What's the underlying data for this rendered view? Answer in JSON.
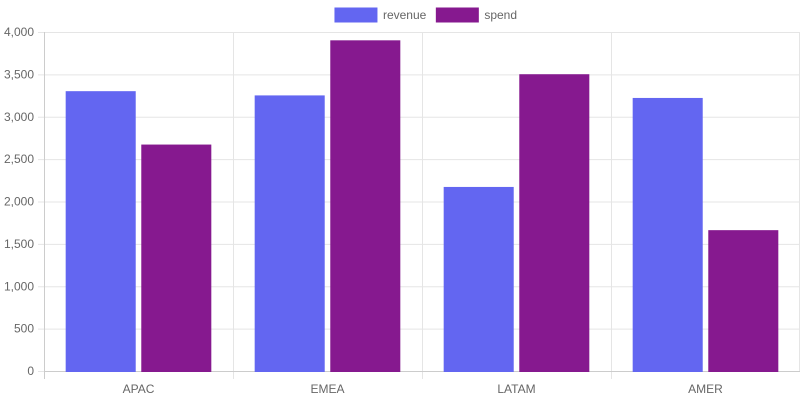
{
  "chart_data": {
    "type": "bar",
    "categories": [
      "APAC",
      "EMEA",
      "LATAM",
      "AMER"
    ],
    "series": [
      {
        "name": "revenue",
        "values": [
          3290,
          3240,
          2160,
          3210
        ],
        "color": "#6366f1"
      },
      {
        "name": "spend",
        "values": [
          2660,
          3890,
          3490,
          1650
        ],
        "color": "#86198f"
      }
    ],
    "ylim": [
      0,
      4000
    ],
    "yticks": [
      0,
      500,
      1000,
      1500,
      2000,
      2500,
      3000,
      3500,
      4000
    ],
    "ytick_labels": [
      "0",
      "500",
      "1,000",
      "1,500",
      "2,000",
      "2,500",
      "3,000",
      "3,500",
      "4,000"
    ],
    "grid": true,
    "legend_position": "top-center"
  }
}
